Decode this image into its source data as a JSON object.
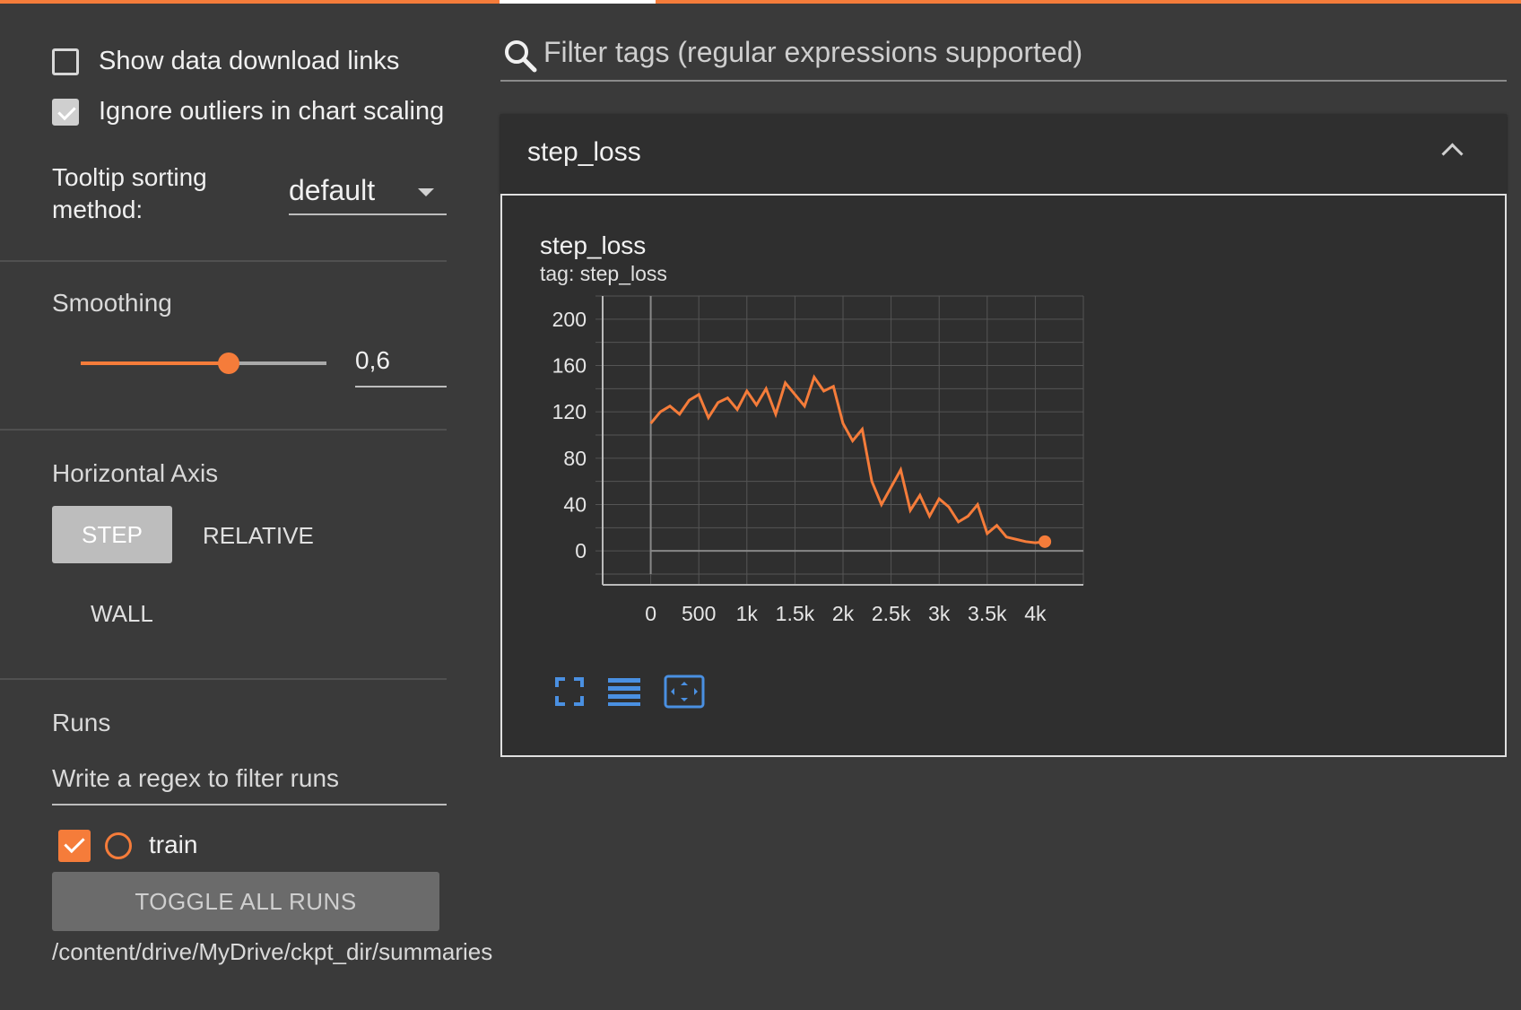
{
  "sidebar": {
    "show_download_links": {
      "label": "Show data download links",
      "checked": false
    },
    "ignore_outliers": {
      "label": "Ignore outliers in chart scaling",
      "checked": true
    },
    "tooltip": {
      "label": "Tooltip sorting method:",
      "value": "default"
    },
    "smoothing": {
      "title": "Smoothing",
      "value": "0,6",
      "fraction": 0.6
    },
    "horizontal_axis": {
      "title": "Horizontal Axis",
      "step": "STEP",
      "relative": "RELATIVE",
      "wall": "WALL"
    },
    "runs": {
      "title": "Runs",
      "filter_placeholder": "Write a regex to filter runs",
      "items": [
        {
          "label": "train",
          "checked": true
        }
      ],
      "toggle_all": "TOGGLE ALL RUNS",
      "path": "/content/drive/MyDrive/ckpt_dir/summaries"
    }
  },
  "main": {
    "filter_placeholder": "Filter tags (regular expressions supported)",
    "panel": {
      "title": "step_loss"
    },
    "card": {
      "title": "step_loss",
      "tag": "tag: step_loss"
    }
  },
  "colors": {
    "accent": "#f57c3a",
    "background": "#3a3a3a",
    "card": "#2f2f2f",
    "icon_blue": "#4a90e2"
  },
  "icons": [
    "search-icon",
    "chevron-up-icon",
    "fullscreen-icon",
    "lines-icon",
    "fit-domain-icon"
  ],
  "chart_data": {
    "type": "line",
    "title": "step_loss",
    "x_ticks": [
      "0",
      "500",
      "1k",
      "1.5k",
      "2k",
      "2.5k",
      "3k",
      "3.5k",
      "4k"
    ],
    "y_ticks": [
      "0",
      "40",
      "80",
      "120",
      "160",
      "200"
    ],
    "xlim": [
      -500,
      4500
    ],
    "ylim": [
      -20,
      220
    ],
    "grid": true,
    "series": [
      {
        "smoothed": true,
        "x": [
          0,
          100,
          200,
          300,
          400,
          500,
          600,
          700,
          800,
          900,
          1000,
          1100,
          1200,
          1300,
          1400,
          1500,
          1600,
          1700,
          1800,
          1900,
          2000,
          2100,
          2200,
          2300,
          2400,
          2500,
          2600,
          2700,
          2800,
          2900,
          3000,
          3100,
          3200,
          3300,
          3400,
          3500,
          3600,
          3700,
          3800,
          3900,
          4000,
          4100
        ],
        "y": [
          110,
          120,
          125,
          118,
          130,
          135,
          115,
          128,
          132,
          122,
          138,
          126,
          140,
          118,
          145,
          135,
          125,
          150,
          138,
          142,
          110,
          95,
          105,
          60,
          40,
          55,
          70,
          35,
          48,
          30,
          45,
          38,
          25,
          30,
          40,
          15,
          22,
          12,
          10,
          8,
          7,
          8
        ]
      }
    ]
  }
}
